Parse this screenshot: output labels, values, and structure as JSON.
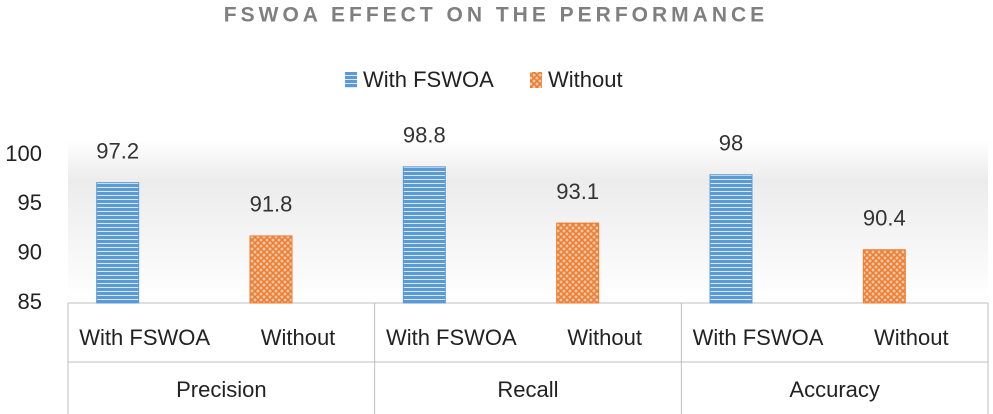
{
  "chart_data": {
    "type": "bar",
    "title": "FSWOA EFFECT ON THE PERFORMANCE",
    "categories": [
      "Precision",
      "Recall",
      "Accuracy"
    ],
    "series": [
      {
        "name": "With FSWOA",
        "color": "#5b9bd5",
        "values": [
          97.2,
          98.8,
          98
        ]
      },
      {
        "name": "Without",
        "color": "#ed7d31",
        "values": [
          91.8,
          93.1,
          90.4
        ]
      }
    ],
    "ylim": [
      85,
      100
    ],
    "yticks": [
      85,
      90,
      95,
      100
    ],
    "legend": "top",
    "grid": false
  }
}
